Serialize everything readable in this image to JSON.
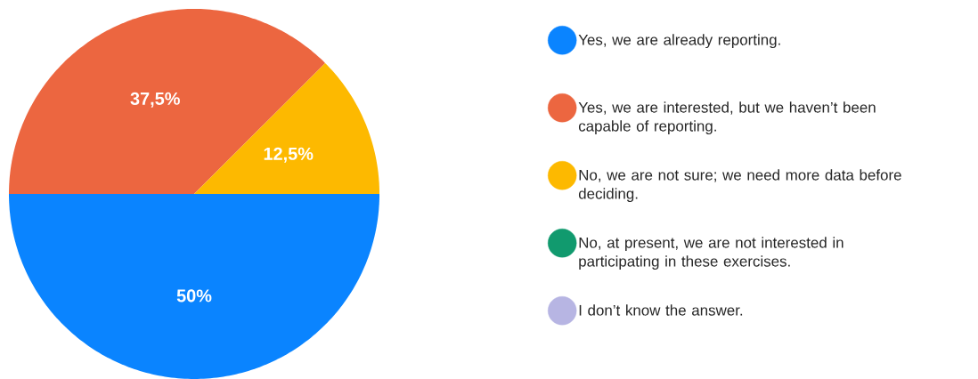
{
  "chart_data": {
    "type": "pie",
    "categories": [
      "Yes, we are already reporting.",
      "Yes, we are interested, but we haven’t been capable of reporting.",
      "No, we are not sure; we need more data before deciding.",
      "No, at present, we are not interested in participating in these exercises.",
      "I don’t know the answer."
    ],
    "values": [
      50,
      37.5,
      12.5,
      0,
      0
    ],
    "colors": [
      "#0a84ff",
      "#ec6640",
      "#fdb900",
      "#119a6e",
      "#b7b5e3"
    ],
    "value_labels": [
      "50%",
      "37,5%",
      "12,5%",
      null,
      null
    ],
    "legend": "right"
  }
}
